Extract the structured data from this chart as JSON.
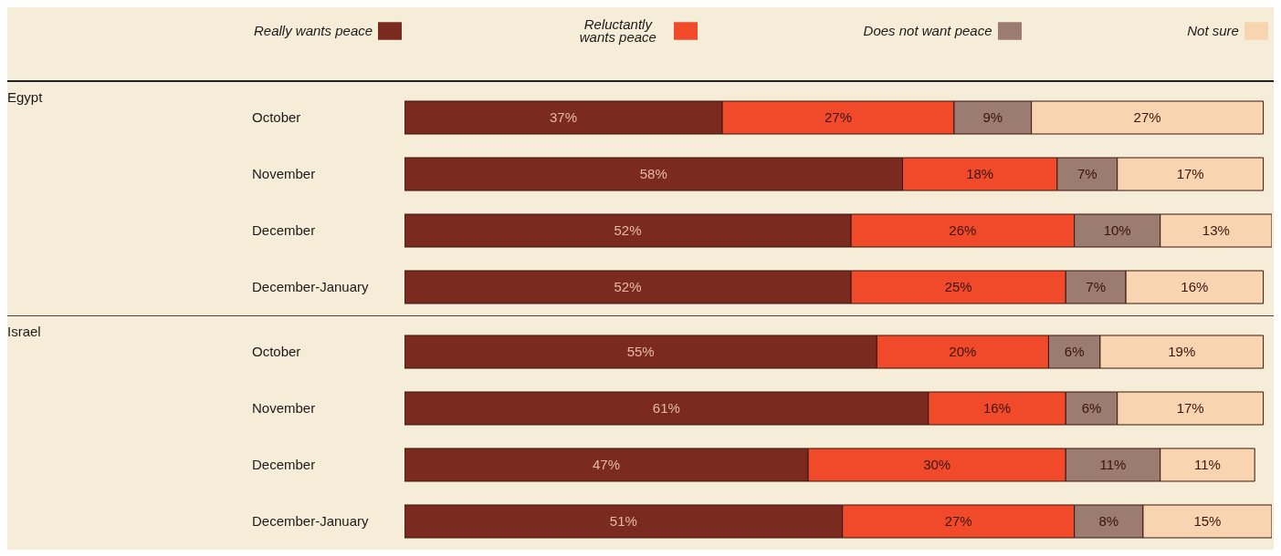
{
  "chart_data": [
    {
      "type": "bar",
      "orientation": "horizontal",
      "stacked": true,
      "legend": "top",
      "ylabel": "Egypt",
      "categories": [
        "October",
        "November",
        "December",
        "December-January"
      ],
      "series": [
        {
          "name": "Really wants peace",
          "color": "#7a2a1e",
          "values": [
            37,
            58,
            52,
            52
          ],
          "value_labels": [
            "37%",
            "58%",
            "52%",
            "52%"
          ]
        },
        {
          "name": "Reluctantly wants peace",
          "color": "#f04a2a",
          "values": [
            27,
            18,
            26,
            25
          ],
          "value_labels": [
            "27%",
            "18%",
            "26%",
            "25%"
          ]
        },
        {
          "name": "Does not want peace",
          "color": "#9c7b70",
          "values": [
            9,
            7,
            10,
            7
          ],
          "value_labels": [
            "9%",
            "7%",
            "10%",
            "7%"
          ]
        },
        {
          "name": "Not sure",
          "color": "#f8d4b0",
          "values": [
            27,
            17,
            13,
            16
          ],
          "value_labels": [
            "27%",
            "17%",
            "13%",
            "16%"
          ]
        }
      ]
    },
    {
      "type": "bar",
      "orientation": "horizontal",
      "stacked": true,
      "ylabel": "Israel",
      "categories": [
        "October",
        "November",
        "December",
        "December-January"
      ],
      "series": [
        {
          "color": "#7a2a1e",
          "values": [
            55,
            61,
            47,
            51
          ],
          "value_labels": [
            "55%",
            "61%",
            "47%",
            "51%"
          ]
        },
        {
          "color": "#f04a2a",
          "values": [
            20,
            16,
            30,
            27
          ],
          "value_labels": [
            "20%",
            "16%",
            "30%",
            "27%"
          ]
        },
        {
          "color": "#9c7b70",
          "values": [
            6,
            6,
            11,
            8
          ],
          "value_labels": [
            "6%",
            "6%",
            "11%",
            "8%"
          ]
        },
        {
          "color": "#f8d4b0",
          "values": [
            19,
            17,
            11,
            15
          ],
          "value_labels": [
            "19%",
            "17%",
            "11%",
            "15%"
          ]
        }
      ]
    }
  ]
}
